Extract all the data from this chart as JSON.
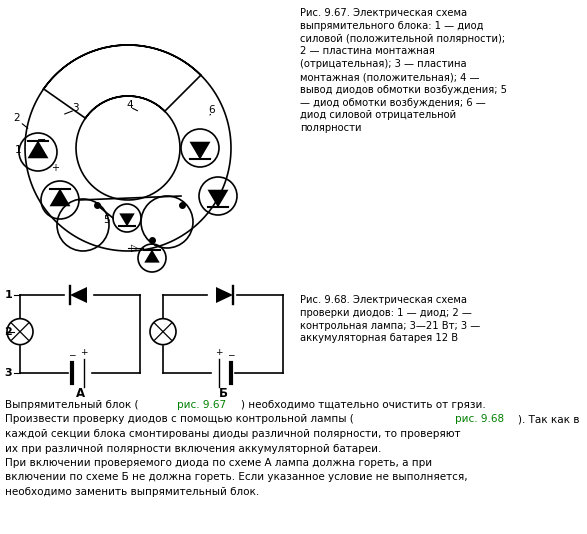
{
  "fig_width": 5.87,
  "fig_height": 5.34,
  "dpi": 100,
  "bg_color": "#ffffff",
  "col": "#000000",
  "green": "#008000",
  "fig967_text": "Рис. 9.67. Электрическая схема\nвыпрямительного блока: 1 — диод\nсиловой (положительной полярности);\n2 — пластина монтажная\n(отрицательная); 3 — пластина\nмонтажная (положительная); 4 —\nвывод диодов обмотки возбуждения; 5\n— диод обмотки возбуждения; 6 —\nдиод силовой отрицательной\nполярности",
  "fig968_text": "Рис. 9.68. Электрическая схема\nпроверки диодов: 1 — диод; 2 —\nконтрольная лампа; 3—21 Вт; 3 —\nаккумуляторная батарея 12 В",
  "bottom_parts": [
    [
      [
        "Выпрямительный блок (",
        "black"
      ],
      [
        "рис. 9.67",
        "green"
      ],
      [
        ") необходимо тщательно очистить от грязи.",
        "black"
      ]
    ],
    [
      [
        "Произвести проверку диодов с помощью контрольной лампы (",
        "black"
      ],
      [
        "рис. 9.68",
        "green"
      ],
      [
        "). Так как в",
        "black"
      ]
    ],
    [
      [
        "каждой секции блока смонтированы диоды различной полярности, то проверяют",
        "black"
      ]
    ],
    [
      [
        "их при различной полярности включения аккумуляторной батареи.",
        "black"
      ]
    ],
    [
      [
        "При включении проверяемого диода по схеме А лампа должна гореть, а при",
        "black"
      ]
    ],
    [
      [
        "включении по схеме Б не должна гореть. Если указанное условие не выполняется,",
        "black"
      ]
    ],
    [
      [
        "необходимо заменить выпрямительный блок.",
        "black"
      ]
    ]
  ]
}
